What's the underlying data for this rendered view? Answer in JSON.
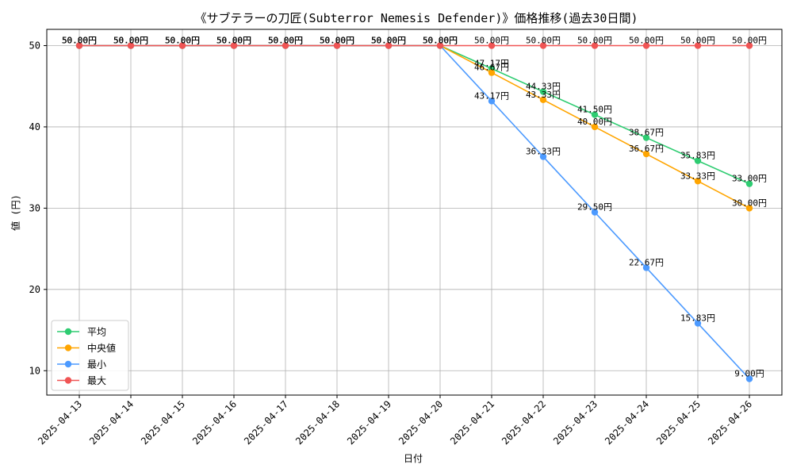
{
  "chart_data": {
    "type": "line",
    "title": "《サブテラーの刀匠(Subterror Nemesis Defender)》価格推移(過去30日間)",
    "xlabel": "日付",
    "ylabel": "値 (円)",
    "ylim": [
      7,
      52
    ],
    "yticks": [
      10,
      20,
      30,
      40,
      50
    ],
    "grid": true,
    "legend_position": "lower-left",
    "label_suffix": "円",
    "categories": [
      "2025-04-13",
      "2025-04-14",
      "2025-04-15",
      "2025-04-16",
      "2025-04-17",
      "2025-04-18",
      "2025-04-19",
      "2025-04-20",
      "2025-04-21",
      "2025-04-22",
      "2025-04-23",
      "2025-04-24",
      "2025-04-25",
      "2025-04-26"
    ],
    "series": [
      {
        "name": "平均",
        "color": "#2ecc71",
        "values": [
          50,
          50,
          50,
          50,
          50,
          50,
          50,
          50,
          47.17,
          44.33,
          41.5,
          38.67,
          35.83,
          33.0
        ]
      },
      {
        "name": "中央値",
        "color": "#ffa500",
        "values": [
          50,
          50,
          50,
          50,
          50,
          50,
          50,
          50,
          46.67,
          43.33,
          40.0,
          36.67,
          33.33,
          30.0
        ]
      },
      {
        "name": "最小",
        "color": "#4c9aff",
        "values": [
          50,
          50,
          50,
          50,
          50,
          50,
          50,
          50,
          43.17,
          36.33,
          29.5,
          22.67,
          15.83,
          9.0
        ]
      },
      {
        "name": "最大",
        "color": "#f05454",
        "values": [
          50,
          50,
          50,
          50,
          50,
          50,
          50,
          50,
          50,
          50,
          50,
          50,
          50,
          50
        ]
      }
    ]
  }
}
